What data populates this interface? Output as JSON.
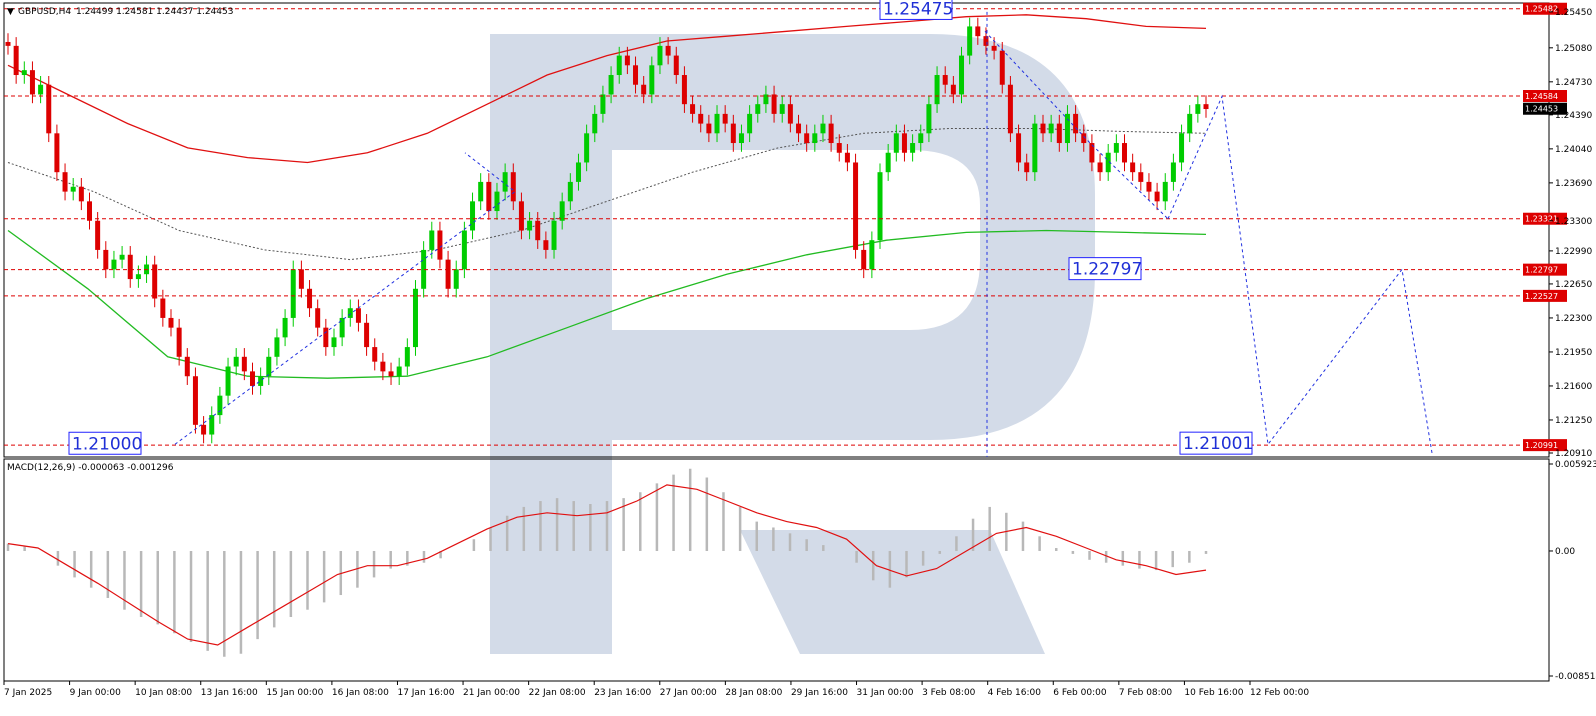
{
  "header": {
    "symbol": "GBPUSD,H4",
    "quote": "1.24499 1.24581 1.24437 1.24453"
  },
  "macd_header": "MACD(12,26,9) -0.000063 -0.001296",
  "colors": {
    "bull": "#00cc00",
    "bear": "#dd0000",
    "ma_red": "#e01010",
    "ma_green": "#22bb22",
    "ma_dotted": "#555555",
    "projection": "#2030e0",
    "level_line": "#dd0000",
    "histogram": "#b8b8b8",
    "signal": "#e01010",
    "current_price_tag": "#000000"
  },
  "chart_data": [
    {
      "type": "candlestick",
      "title": "GBPUSD,H4",
      "y_range": [
        1.2091,
        1.255
      ],
      "y_ticks": [
        "1.25450",
        "1.25080",
        "1.24730",
        "1.24390",
        "1.24040",
        "1.23690",
        "1.23300",
        "1.22990",
        "1.22650",
        "1.22300",
        "1.21950",
        "1.21600",
        "1.21250",
        "1.20910"
      ],
      "x_ticks": [
        "7 Jan 2025",
        "9 Jan 00:00",
        "10 Jan 08:00",
        "13 Jan 16:00",
        "15 Jan 00:00",
        "16 Jan 08:00",
        "17 Jan 16:00",
        "21 Jan 00:00",
        "22 Jan 08:00",
        "23 Jan 16:00",
        "27 Jan 00:00",
        "28 Jan 08:00",
        "29 Jan 16:00",
        "31 Jan 00:00",
        "3 Feb 08:00",
        "4 Feb 16:00",
        "6 Feb 00:00",
        "7 Feb 08:00",
        "10 Feb 16:00",
        "12 Feb 00:00"
      ],
      "price_tags": [
        {
          "label": "1.25482",
          "value": 1.25482,
          "kind": "level"
        },
        {
          "label": "1.24584",
          "value": 1.24584,
          "kind": "level"
        },
        {
          "label": "1.24453",
          "value": 1.24453,
          "kind": "current"
        },
        {
          "label": "1.23321",
          "value": 1.23321,
          "kind": "level"
        },
        {
          "label": "1.22797",
          "value": 1.22797,
          "kind": "level"
        },
        {
          "label": "1.22527",
          "value": 1.22527,
          "kind": "level"
        },
        {
          "label": "1.20991",
          "value": 1.20991,
          "kind": "level"
        }
      ],
      "annotations": [
        {
          "label": "1.25475",
          "value": 1.25475
        },
        {
          "label": "1.22797",
          "value": 1.22797
        },
        {
          "label": "1.21000",
          "value": 1.21
        },
        {
          "label": "1.21001",
          "value": 1.21001
        }
      ],
      "closes": [
        1.251,
        1.248,
        1.2485,
        1.246,
        1.247,
        1.242,
        1.238,
        1.236,
        1.2365,
        1.235,
        1.233,
        1.23,
        1.228,
        1.229,
        1.2295,
        1.227,
        1.2275,
        1.2285,
        1.225,
        1.223,
        1.222,
        1.219,
        1.217,
        1.212,
        1.211,
        1.213,
        1.215,
        1.218,
        1.219,
        1.2175,
        1.216,
        1.217,
        1.219,
        1.221,
        1.223,
        1.228,
        1.226,
        1.224,
        1.222,
        1.22,
        1.221,
        1.223,
        1.224,
        1.2225,
        1.22,
        1.2185,
        1.2175,
        1.217,
        1.218,
        1.22,
        1.226,
        1.23,
        1.232,
        1.229,
        1.226,
        1.228,
        1.232,
        1.235,
        1.237,
        1.234,
        1.236,
        1.238,
        1.235,
        1.232,
        1.233,
        1.231,
        1.23,
        1.233,
        1.235,
        1.237,
        1.239,
        1.242,
        1.244,
        1.246,
        1.248,
        1.25,
        1.249,
        1.247,
        1.246,
        1.249,
        1.251,
        1.25,
        1.248,
        1.245,
        1.244,
        1.243,
        1.242,
        1.244,
        1.243,
        1.241,
        1.242,
        1.244,
        1.245,
        1.246,
        1.244,
        1.245,
        1.243,
        1.242,
        1.241,
        1.242,
        1.243,
        1.241,
        1.24,
        1.239,
        1.23,
        1.228,
        1.231,
        1.238,
        1.24,
        1.242,
        1.24,
        1.241,
        1.242,
        1.245,
        1.248,
        1.247,
        1.246,
        1.25,
        1.253,
        1.252,
        1.251,
        1.2505,
        1.247,
        1.242,
        1.239,
        1.238,
        1.243,
        1.242,
        1.243,
        1.241,
        1.244,
        1.242,
        1.241,
        1.239,
        1.238,
        1.24,
        1.241,
        1.239,
        1.238,
        1.237,
        1.236,
        1.235,
        1.237,
        1.239,
        1.242,
        1.244,
        1.245,
        1.2445
      ],
      "moving_averages": [
        {
          "name": "red",
          "values": [
            1.249,
            1.246,
            1.243,
            1.2405,
            1.2395,
            1.239,
            1.24,
            1.242,
            1.245,
            1.248,
            1.25,
            1.2515,
            1.252,
            1.2525,
            1.253,
            1.2535,
            1.254,
            1.2542,
            1.2538,
            1.253,
            1.2528
          ]
        },
        {
          "name": "green",
          "values": [
            1.232,
            1.226,
            1.219,
            1.217,
            1.2168,
            1.217,
            1.219,
            1.222,
            1.225,
            1.2275,
            1.2295,
            1.231,
            1.2318,
            1.232,
            1.2318,
            1.2316
          ]
        },
        {
          "name": "dotted",
          "values": [
            1.239,
            1.236,
            1.232,
            1.23,
            1.229,
            1.23,
            1.232,
            1.235,
            1.238,
            1.2405,
            1.242,
            1.2425,
            1.2425,
            1.2422,
            1.242
          ]
        }
      ],
      "projections": [
        [
          [
            1.21,
            1.236
          ],
          [
            1.236,
            1.24
          ],
          [
            1.24,
            1.223
          ]
        ],
        [
          [
            1.2525,
            1.241
          ],
          [
            1.241,
            1.2332
          ]
        ],
        [
          [
            1.2332,
            1.2458
          ],
          [
            1.2458,
            1.21
          ],
          [
            1.21,
            1.228
          ],
          [
            1.228,
            1.2091
          ]
        ]
      ]
    },
    {
      "type": "histogram",
      "title": "MACD(12,26,9) -0.000063 -0.001296",
      "y_range": [
        -0.008514,
        0.005923
      ],
      "y_ticks": [
        "0.005923",
        "0.00",
        "-0.008514"
      ],
      "histogram": [
        0.0005,
        0.0003,
        0.0,
        -0.001,
        -0.0018,
        -0.0025,
        -0.0032,
        -0.004,
        -0.0045,
        -0.005,
        -0.0056,
        -0.0062,
        -0.0068,
        -0.0072,
        -0.007,
        -0.006,
        -0.0052,
        -0.0045,
        -0.004,
        -0.0035,
        -0.003,
        -0.0025,
        -0.0018,
        -0.0012,
        -0.001,
        -0.0008,
        -0.0005,
        0.0,
        0.0008,
        0.0016,
        0.0024,
        0.003,
        0.0034,
        0.0036,
        0.0034,
        0.0032,
        0.0034,
        0.0036,
        0.004,
        0.0046,
        0.0052,
        0.0056,
        0.005,
        0.004,
        0.003,
        0.002,
        0.0016,
        0.0012,
        0.0008,
        0.0004,
        0.0,
        -0.0008,
        -0.002,
        -0.0025,
        -0.0018,
        -0.001,
        -0.0002,
        0.001,
        0.0022,
        0.003,
        0.0026,
        0.002,
        0.001,
        0.0002,
        -0.0002,
        -0.0006,
        -0.0008,
        -0.001,
        -0.0012,
        -0.0013,
        -0.0011,
        -0.0008,
        -0.0002
      ],
      "signal": [
        0.0005,
        0.0002,
        -0.001,
        -0.0022,
        -0.0035,
        -0.0048,
        -0.006,
        -0.0064,
        -0.0052,
        -0.004,
        -0.0028,
        -0.0016,
        -0.001,
        -0.001,
        -0.0005,
        0.0005,
        0.0015,
        0.0023,
        0.0026,
        0.0024,
        0.0026,
        0.0034,
        0.0045,
        0.0042,
        0.0034,
        0.0026,
        0.002,
        0.0016,
        0.0008,
        -0.001,
        -0.0017,
        -0.0012,
        0.0,
        0.0012,
        0.0016,
        0.001,
        0.0002,
        -0.0006,
        -0.001,
        -0.0016,
        -0.0013
      ]
    }
  ]
}
